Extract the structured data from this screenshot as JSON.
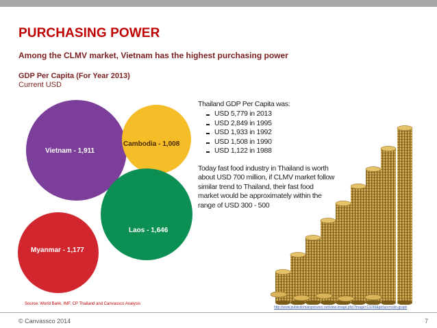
{
  "slide": {
    "title": "PURCHASING POWER",
    "subtitle": "Among the CLMV market, Vietnam has the highest purchasing power",
    "chart_title": "GDP Per Capita (For Year 2013)",
    "chart_unit": "Current USD",
    "source": "Source: World Bank, IMF, CP Thailand and Canvassco Analysis",
    "image_credit": "http://www.publicdomainpictures.net/view-image.php?image=13249&picture=coin-graph",
    "footer_left": "© Canvassco 2014",
    "page_number": "7"
  },
  "chart_data": {
    "type": "bubble",
    "title": "GDP Per Capita (For Year 2013)",
    "unit": "Current USD",
    "points": [
      {
        "label": "Vietnam - 1,911",
        "country": "Vietnam",
        "value": 1911,
        "color": "#7b3f99"
      },
      {
        "label": "Cambodia - 1,008",
        "country": "Cambodia",
        "value": 1008,
        "color": "#f5bd27"
      },
      {
        "label": "Laos - 1,646",
        "country": "Laos",
        "value": 1646,
        "color": "#0c8f52"
      },
      {
        "label": "Myanmar - 1,177",
        "country": "Myanmar",
        "value": 1177,
        "color": "#d2262e"
      }
    ]
  },
  "thailand": {
    "heading": "Thailand GDP Per Capita was:",
    "items": [
      "USD 5,779 in 2013",
      "USD 2,849 in 1995",
      "USD 1,933 in 1992",
      "USD 1,508 in 1990",
      "USD 1,122 in 1988"
    ],
    "paragraph": "Today fast food industry in Thailand is worth about USD 700 million, if CLMV market follow similar trend to Thailand, their fast food market would be approximately within the range of USD 300 - 500"
  },
  "colors": {
    "title": "#c00000",
    "subtitle": "#7a1f1f",
    "bar": "#a6a6a6"
  }
}
